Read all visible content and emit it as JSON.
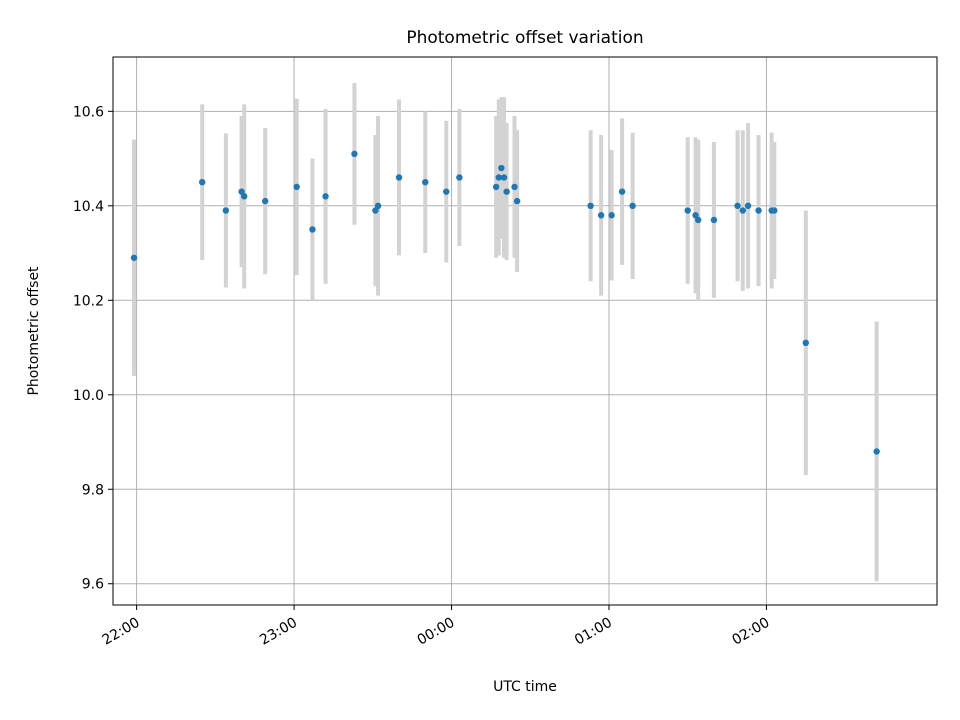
{
  "chart_data": {
    "type": "scatter",
    "title": "Photometric offset variation",
    "xlabel": "UTC time",
    "ylabel": "Photometric offset",
    "x_tick_labels": [
      "22:00",
      "23:00",
      "00:00",
      "01:00",
      "02:00"
    ],
    "y_tick_labels": [
      "9.6",
      "9.8",
      "10.0",
      "10.2",
      "10.4",
      "10.6"
    ],
    "xlim": [
      "21:51",
      "03:05"
    ],
    "ylim": [
      9.555,
      10.715
    ],
    "grid": true,
    "colors": {
      "points": "#1f77b4",
      "errorbars": "#d3d3d3",
      "grid": "#b0b0b0"
    },
    "series": [
      {
        "x": [
          "21:59",
          "22:25",
          "22:34",
          "22:40",
          "22:41",
          "22:49",
          "23:01",
          "23:07",
          "23:12",
          "23:23",
          "23:31",
          "23:32",
          "23:40",
          "23:50",
          "23:58",
          "00:03",
          "00:17",
          "00:18",
          "00:19",
          "00:20",
          "00:21",
          "00:24",
          "00:25",
          "00:53",
          "00:57",
          "01:01",
          "01:05",
          "01:09",
          "01:30",
          "01:33",
          "01:34",
          "01:40",
          "01:49",
          "01:51",
          "01:53",
          "01:57",
          "02:02",
          "02:03",
          "02:15",
          "02:42"
        ],
        "y": [
          10.29,
          10.45,
          10.39,
          10.43,
          10.42,
          10.41,
          10.44,
          10.35,
          10.42,
          10.51,
          10.39,
          10.4,
          10.46,
          10.45,
          10.43,
          10.46,
          10.44,
          10.46,
          10.48,
          10.46,
          10.43,
          10.44,
          10.41,
          10.4,
          10.38,
          10.38,
          10.43,
          10.4,
          10.39,
          10.38,
          10.37,
          10.37,
          10.4,
          10.39,
          10.4,
          10.39,
          10.39,
          10.39,
          10.11,
          9.88
        ],
        "yerr": [
          0.25,
          0.165,
          0.163,
          0.16,
          0.195,
          0.155,
          0.187,
          0.15,
          0.185,
          0.15,
          0.16,
          0.19,
          0.165,
          0.15,
          0.15,
          0.145,
          0.15,
          0.165,
          0.15,
          0.17,
          0.145,
          0.15,
          0.15,
          0.16,
          0.17,
          0.138,
          0.155,
          0.155,
          0.155,
          0.165,
          0.17,
          0.165,
          0.16,
          0.17,
          0.175,
          0.16,
          0.165,
          0.145,
          0.28,
          0.275
        ]
      }
    ]
  }
}
